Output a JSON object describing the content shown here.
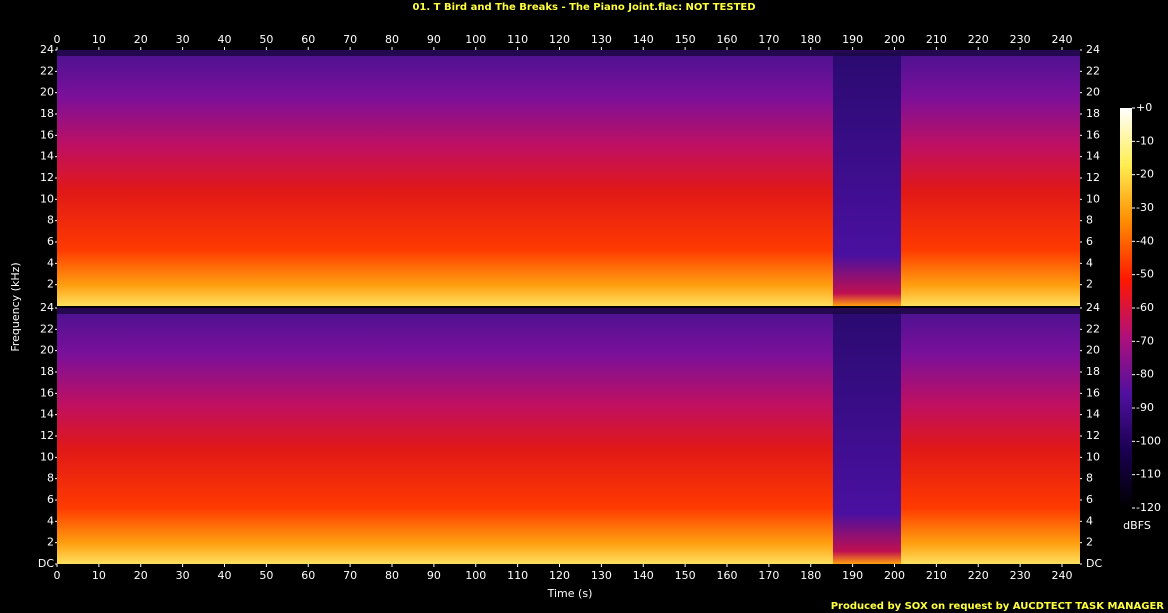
{
  "chart_data": {
    "type": "spectrogram",
    "title": "01. T Bird and The Breaks - The Piano Joint.flac: NOT TESTED",
    "x_label": "Time (s)",
    "y_label": "Frequency (kHz)",
    "footer": "Produced by SOX on request by AUCDTECT TASK MANAGER",
    "xlim": [
      0,
      244.3
    ],
    "xticks": [
      0,
      10,
      20,
      30,
      40,
      50,
      60,
      70,
      80,
      90,
      100,
      110,
      120,
      130,
      140,
      150,
      160,
      170,
      180,
      190,
      200,
      210,
      220,
      230,
      240
    ],
    "panels": [
      {
        "ylim": [
          0,
          24
        ],
        "yticks": [
          2,
          4,
          6,
          8,
          10,
          12,
          14,
          16,
          18,
          20,
          22,
          24
        ]
      },
      {
        "ylim": [
          0,
          24
        ],
        "yticks": [
          {
            "value": 0,
            "label": "DC"
          },
          2,
          4,
          6,
          8,
          10,
          12,
          14,
          16,
          18,
          20,
          22,
          24
        ]
      }
    ],
    "colorbar": {
      "label": "dBFS",
      "zlim": [
        -120,
        0
      ],
      "zticks": [
        {
          "value": 0,
          "label": "+0"
        },
        -10,
        -20,
        -30,
        -40,
        -50,
        -60,
        -70,
        -80,
        -90,
        -100,
        -110,
        -120
      ],
      "colors": [
        "#000000",
        "#1a0050",
        "#5010a0",
        "#b0107a",
        "#ff1800",
        "#ff8a00",
        "#ffee50",
        "#ffffff"
      ]
    }
  }
}
